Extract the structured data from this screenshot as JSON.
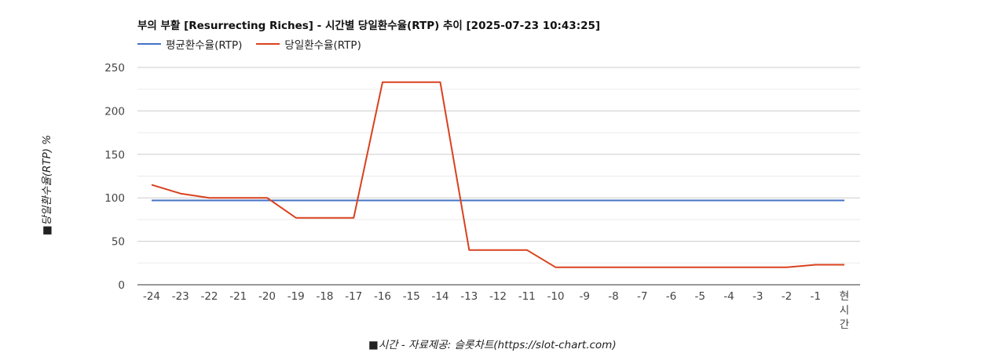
{
  "chart_data": {
    "type": "line",
    "title": "부의 부활 [Resurrecting Riches] - 시간별 당일환수율(RTP) 추이 [2025-07-23 10:43:25]",
    "xlabel": "■시간 - 자료제공: 슬롯차트(https://slot-chart.com)",
    "ylabel": "■당일환수율(RTP) %",
    "categories": [
      "-24",
      "-23",
      "-22",
      "-21",
      "-20",
      "-19",
      "-18",
      "-17",
      "-16",
      "-15",
      "-14",
      "-13",
      "-12",
      "-11",
      "-10",
      "-9",
      "-8",
      "-7",
      "-6",
      "-5",
      "-4",
      "-3",
      "-2",
      "-1",
      "현\n시\n간"
    ],
    "series": [
      {
        "name": "평균환수율(RTP)",
        "color": "#4472c4",
        "values": [
          97,
          97,
          97,
          97,
          97,
          97,
          97,
          97,
          97,
          97,
          97,
          97,
          97,
          97,
          97,
          97,
          97,
          97,
          97,
          97,
          97,
          97,
          97,
          97,
          97
        ]
      },
      {
        "name": "당일환수율(RTP)",
        "color": "#d9411e",
        "values": [
          115,
          105,
          100,
          100,
          100,
          77,
          77,
          77,
          233,
          233,
          233,
          40,
          40,
          40,
          20,
          20,
          20,
          20,
          20,
          20,
          20,
          20,
          20,
          23,
          23
        ]
      }
    ],
    "ylim": [
      0,
      250
    ],
    "yticks": [
      0,
      50,
      100,
      150,
      200,
      250
    ],
    "grid": true,
    "legend_position": "top-left"
  }
}
